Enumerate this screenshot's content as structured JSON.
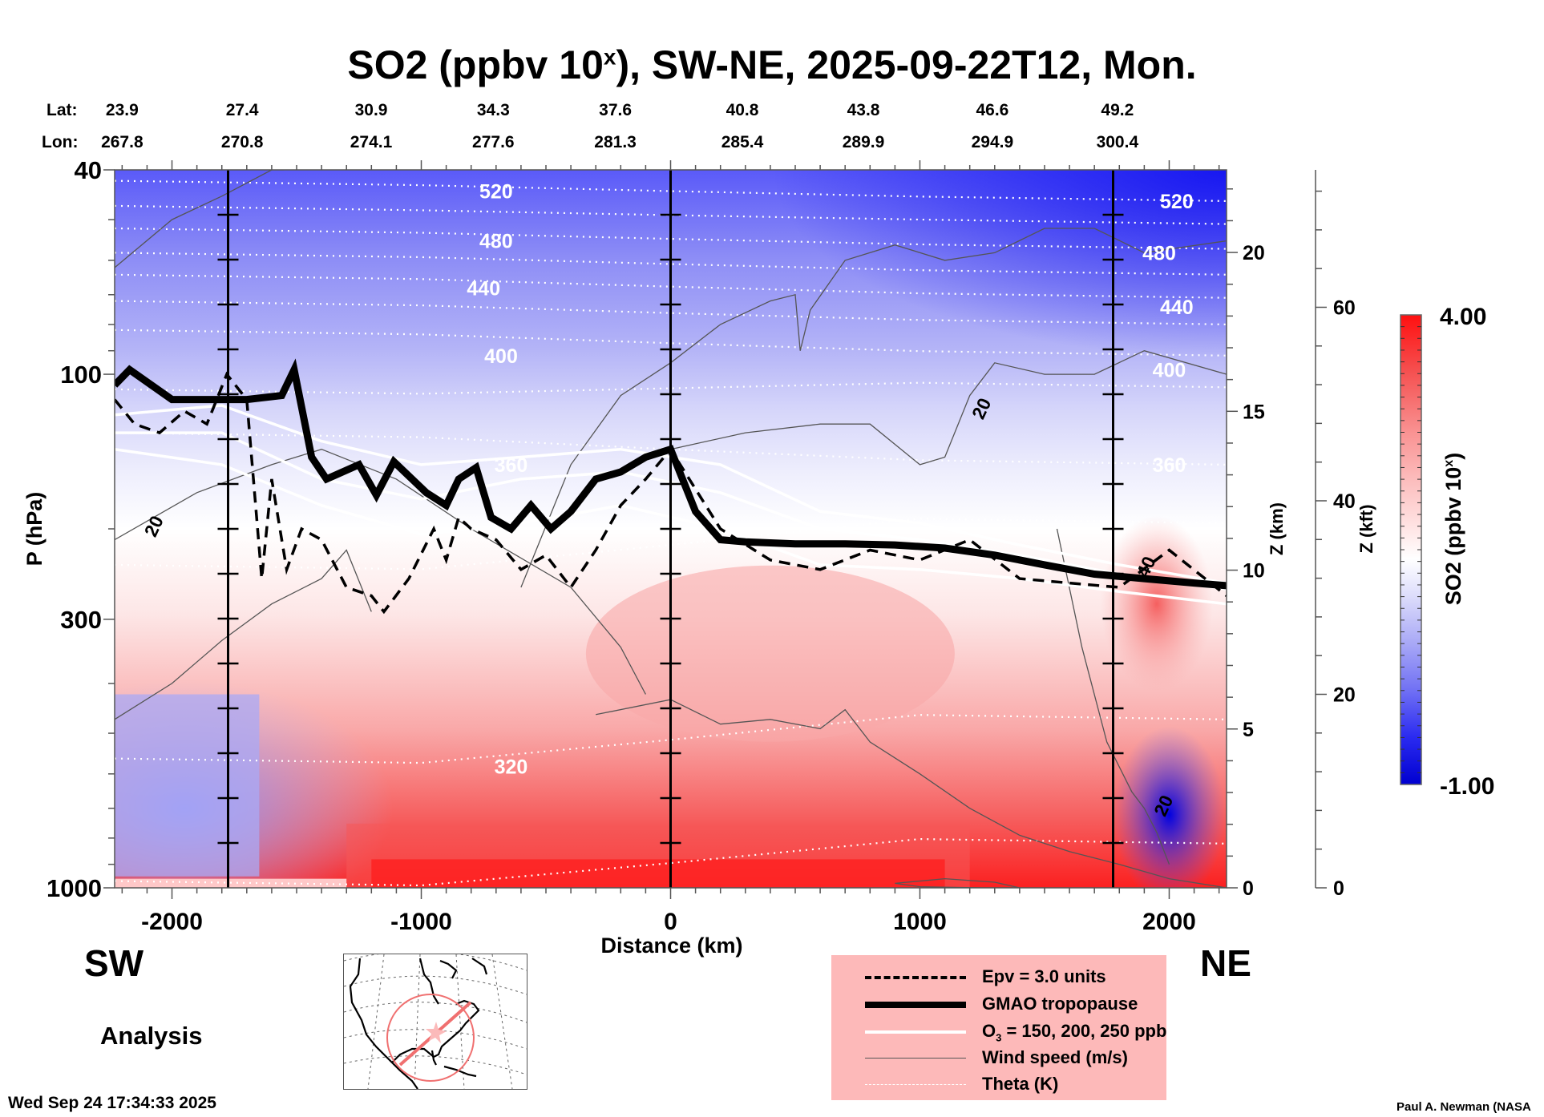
{
  "title": {
    "prefix": "SO2 (ppbv 10",
    "superscript": "x",
    "suffix": "), SW-NE, 2025-09-22T12, Mon."
  },
  "latlon": {
    "lat_label": "Lat:",
    "lon_label": "Lon:",
    "lat": [
      "23.9",
      "27.4",
      "30.9",
      "34.3",
      "37.6",
      "40.8",
      "43.8",
      "46.6",
      "49.2"
    ],
    "lon": [
      "267.8",
      "270.8",
      "274.1",
      "277.6",
      "281.3",
      "285.4",
      "289.9",
      "294.9",
      "300.4"
    ]
  },
  "direction": {
    "left": "SW",
    "right": "NE"
  },
  "analysis_label": "Analysis",
  "timestamp": "Wed Sep 24 17:34:33 2025",
  "credit": "Paul A. Newman (NASA",
  "legend": {
    "items": [
      {
        "label": "Epv = 3.0 units",
        "style": "dashed-black"
      },
      {
        "label": "GMAO tropopause",
        "style": "thick-black"
      },
      {
        "label_main": "O",
        "label_sub": "3",
        "label_rest": " = 150, 200, 250 ppb",
        "style": "white"
      },
      {
        "label": "Wind speed (m/s)",
        "style": "thin-gray"
      },
      {
        "label": "Theta (K)",
        "style": "dotted-white"
      }
    ]
  },
  "colors": {
    "legend_bg": "#fdb9b9",
    "colormap_low": "#0000d0",
    "colormap_mid": "#ffffff",
    "colormap_high": "#ff1010",
    "map_circle": "#f07070"
  },
  "chart_data": {
    "type": "heatmap",
    "title": "SO2 (ppbv 10^x), SW-NE, 2025-09-22T12, Mon.",
    "xlabel": "Distance (km)",
    "ylabel": "P (hPa)",
    "ylabel_right_1": "Z (km)",
    "ylabel_right_2": "Z (kft)",
    "xlim": [
      -2230,
      2230
    ],
    "ylim": [
      1000,
      40
    ],
    "yscale": "log",
    "x_ticks": [
      -2000,
      -1000,
      0,
      1000,
      2000
    ],
    "x_tick_labels": [
      "-2000",
      "-1000",
      "0",
      "1000",
      "2000"
    ],
    "y_ticks": [
      40,
      100,
      300,
      1000
    ],
    "y_tick_labels": [
      "40",
      "100",
      "300",
      "1000"
    ],
    "zkm_ticks": [
      0,
      5,
      10,
      15,
      20
    ],
    "zkm_tick_labels": [
      "0",
      "5",
      "10",
      "15",
      "20"
    ],
    "zkft_ticks": [
      0,
      20,
      40,
      60
    ],
    "zkft_tick_labels": [
      "0",
      "20",
      "40",
      "60"
    ],
    "vertical_markers_km": [
      -1775,
      0,
      1775
    ],
    "colorbar": {
      "label": "SO2 (ppbv 10^x)",
      "min": -1.0,
      "max": 4.0,
      "min_label": "-1.00",
      "max_label": "4.00"
    },
    "theta_labels": [
      {
        "value": "520",
        "x": -700,
        "p": 44
      },
      {
        "value": "480",
        "x": -700,
        "p": 55
      },
      {
        "value": "440",
        "x": -750,
        "p": 68
      },
      {
        "value": "400",
        "x": -680,
        "p": 92
      },
      {
        "value": "360",
        "x": -640,
        "p": 150
      },
      {
        "value": "320",
        "x": -640,
        "p": 580
      },
      {
        "value": "520",
        "x": 2030,
        "p": 46
      },
      {
        "value": "480",
        "x": 1960,
        "p": 58
      },
      {
        "value": "440",
        "x": 2030,
        "p": 74
      },
      {
        "value": "400",
        "x": 2000,
        "p": 98
      },
      {
        "value": "360",
        "x": 2000,
        "p": 150
      }
    ],
    "wind_labels": [
      {
        "value": "20",
        "x": -2050,
        "p": 200
      },
      {
        "value": "20",
        "x": 1270,
        "p": 118
      },
      {
        "value": "40",
        "x": 1930,
        "p": 240
      },
      {
        "value": "20",
        "x": 2000,
        "p": 700
      }
    ],
    "theta_levels": [
      {
        "value": 520,
        "p_left": 42,
        "p_right": 46
      },
      {
        "value": 500,
        "p_left": 47,
        "p_right": 51
      },
      {
        "value": 480,
        "p_left": 52,
        "p_right": 57
      },
      {
        "value": 460,
        "p_left": 58,
        "p_right": 64
      },
      {
        "value": 440,
        "p_left": 64,
        "p_right": 71
      },
      {
        "value": 420,
        "p_left": 72,
        "p_right": 80
      },
      {
        "value": 400,
        "p_left": 82,
        "p_right": 92
      },
      {
        "value": 380,
        "p_left": 107,
        "p_right": 106
      },
      {
        "value": 360,
        "p_left": 130,
        "p_right": 150
      },
      {
        "value": 340,
        "p_left": 235,
        "p_right": 195
      },
      {
        "value": 320,
        "p_left": 560,
        "p_right": 470
      },
      {
        "value": 300,
        "p_left": 970,
        "p_right": 820
      }
    ],
    "tropopause": {
      "x": [
        -2230,
        -2170,
        -2000,
        -1850,
        -1700,
        -1560,
        -1510,
        -1440,
        -1380,
        -1250,
        -1180,
        -1110,
        -980,
        -900,
        -850,
        -780,
        -720,
        -640,
        -560,
        -480,
        -400,
        -300,
        -200,
        -100,
        0,
        100,
        200,
        300,
        500,
        700,
        900,
        1100,
        1300,
        1500,
        1700,
        1900,
        2100,
        2230
      ],
      "p": [
        105,
        98,
        112,
        112,
        112,
        110,
        98,
        145,
        160,
        150,
        172,
        148,
        170,
        180,
        160,
        152,
        190,
        200,
        180,
        200,
        185,
        160,
        155,
        145,
        140,
        185,
        210,
        212,
        214,
        214,
        215,
        218,
        225,
        235,
        245,
        250,
        255,
        258
      ]
    },
    "epv_3": {
      "x": [
        -2230,
        -2150,
        -2050,
        -1950,
        -1860,
        -1780,
        -1700,
        -1640,
        -1600,
        -1540,
        -1480,
        -1400,
        -1300,
        -1200,
        -1150,
        -1050,
        -950,
        -900,
        -850,
        -800,
        -700,
        -600,
        -500,
        -400,
        -300,
        -200,
        -100,
        0,
        200,
        400,
        600,
        800,
        1000,
        1200,
        1400,
        1600,
        1800,
        2000,
        2230
      ],
      "p": [
        112,
        125,
        130,
        118,
        125,
        100,
        112,
        250,
        160,
        240,
        200,
        210,
        260,
        270,
        290,
        250,
        200,
        230,
        190,
        200,
        210,
        240,
        225,
        260,
        220,
        180,
        160,
        140,
        200,
        230,
        240,
        220,
        230,
        210,
        250,
        255,
        260,
        220,
        270
      ]
    },
    "o3_contours": [
      {
        "value": 250,
        "x": [
          -2230,
          -1800,
          -1400,
          -1000,
          -600,
          -200,
          200,
          600,
          1000,
          1400,
          1800,
          2230
        ],
        "p": [
          120,
          115,
          135,
          150,
          145,
          140,
          150,
          185,
          195,
          215,
          235,
          255
        ]
      },
      {
        "value": 200,
        "x": [
          -2230,
          -1800,
          -1400,
          -1000,
          -600,
          -200,
          200,
          600,
          1000,
          1400,
          1800,
          2230
        ],
        "p": [
          130,
          130,
          160,
          175,
          160,
          155,
          170,
          200,
          210,
          225,
          245,
          262
        ]
      },
      {
        "value": 150,
        "x": [
          -2230,
          -1800,
          -1400,
          -1000,
          -600,
          -200,
          200,
          600,
          1000,
          1400,
          1800,
          2230
        ],
        "p": [
          140,
          150,
          180,
          205,
          195,
          180,
          200,
          235,
          240,
          250,
          265,
          280
        ]
      }
    ],
    "wind_contours": [
      {
        "x": [
          -2230,
          -2000,
          -1800,
          -1600,
          -1550
        ],
        "p": [
          62,
          50,
          45,
          40,
          40
        ]
      },
      {
        "x": [
          -2230,
          -1900,
          -1600,
          -1400,
          -1100,
          -800,
          -400,
          -200,
          -100
        ],
        "p": [
          210,
          170,
          150,
          140,
          160,
          200,
          260,
          340,
          420
        ]
      },
      {
        "x": [
          -2230,
          -2000,
          -1800,
          -1600,
          -1400,
          -1300,
          -1200
        ],
        "p": [
          470,
          400,
          330,
          280,
          250,
          220,
          290
        ]
      },
      {
        "x": [
          -600,
          -400,
          -200,
          0,
          200,
          400,
          500,
          520,
          560,
          700,
          900,
          1100,
          1300,
          1500,
          1700,
          1900,
          2230
        ],
        "p": [
          260,
          150,
          110,
          95,
          80,
          72,
          70,
          90,
          75,
          60,
          56,
          60,
          58,
          52,
          52,
          58,
          55
        ]
      },
      {
        "x": [
          0,
          300,
          600,
          800,
          1000,
          1100,
          1200,
          1300,
          1500,
          1700,
          1900,
          2230
        ],
        "p": [
          140,
          130,
          125,
          125,
          150,
          145,
          110,
          95,
          100,
          100,
          90,
          100
        ]
      },
      {
        "x": [
          -300,
          0,
          200,
          400,
          600,
          700,
          800,
          1000,
          1200,
          1400,
          1600,
          1800,
          2000,
          2230
        ],
        "p": [
          460,
          430,
          480,
          470,
          490,
          450,
          520,
          600,
          700,
          790,
          850,
          900,
          960,
          1000
        ]
      },
      {
        "x": [
          1550,
          1650,
          1750,
          1850,
          1900,
          1950,
          2000
        ],
        "p": [
          200,
          340,
          520,
          650,
          700,
          780,
          900
        ]
      },
      {
        "x": [
          900,
          1100,
          1300,
          1400,
          1250,
          1000,
          900
        ],
        "p": [
          980,
          960,
          975,
          1000,
          1000,
          995,
          980
        ]
      }
    ],
    "so2_field_description": "Negative (blue, down to -1) above ~150 hPa intensifying with altitude, strongest at top-right; near-zero (white) around 150-350 hPa; positive (red, up to ~4) in lower troposphere 400-1000 hPa from -1300 to 1600 km, most intense near surface 800-1000 hPa; blue patch at SW lower troposphere (-2230 to -1700 km, 450-950 hPa) and at NE surface near 1900-2200 km."
  }
}
